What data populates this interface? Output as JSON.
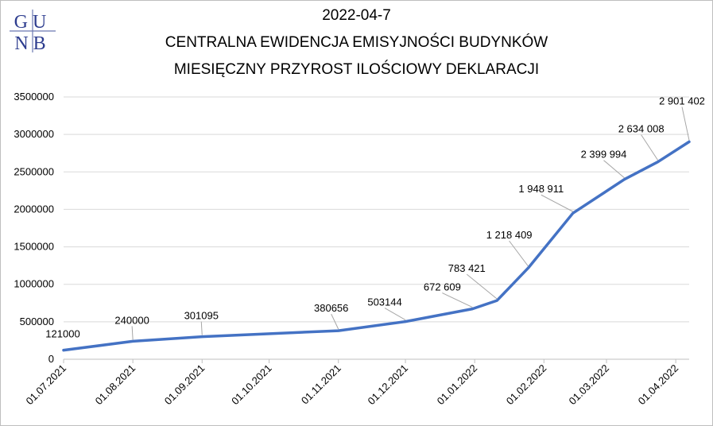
{
  "logo": {
    "text_top": "GU",
    "text_bottom": "NB"
  },
  "chart_data": {
    "type": "line",
    "title_lines": [
      "2022-04-7",
      "CENTRALNA EWIDENCJA EMISYJNOŚCI BUDYNKÓW",
      "MIESIĘCZNY PRZYROST ILOŚCIOWY DEKLARACJI"
    ],
    "xlabel": "",
    "ylabel": "",
    "ylim": [
      0,
      3500000
    ],
    "yticks": [
      0,
      500000,
      1000000,
      1500000,
      2000000,
      2500000,
      3000000,
      3500000
    ],
    "ytick_labels": [
      "0",
      "500000",
      "1000000",
      "1500000",
      "2000000",
      "2500000",
      "3000000",
      "3500000"
    ],
    "xticks": [
      "2021-07-01",
      "2021-08-01",
      "2021-09-01",
      "2021-10-01",
      "2021-11-01",
      "2021-12-01",
      "2022-01-01",
      "2022-02-01",
      "2022-03-01",
      "2022-04-01"
    ],
    "xtick_labels": [
      "01.07.2021",
      "01.08.2021",
      "01.09.2021",
      "01.10.2021",
      "01.11.2021",
      "01.12.2021",
      "01.01.2022",
      "01.02.2022",
      "01.03.2022",
      "01.04.2022"
    ],
    "xlim": [
      "2021-07-01",
      "2022-04-07"
    ],
    "grid": true,
    "legend": "none",
    "line_color": "#4472c4",
    "series": [
      {
        "points": [
          {
            "x": "2021-07-01",
            "y": 121000,
            "label": "121000"
          },
          {
            "x": "2021-08-01",
            "y": 240000,
            "label": "240000"
          },
          {
            "x": "2021-09-01",
            "y": 301095,
            "label": "301095"
          },
          {
            "x": "2021-11-01",
            "y": 380656,
            "label": "380656"
          },
          {
            "x": "2021-12-01",
            "y": 503144,
            "label": "503144"
          },
          {
            "x": "2021-12-31",
            "y": 672609,
            "label": "672 609"
          },
          {
            "x": "2022-01-11",
            "y": 783421,
            "label": "783 421"
          },
          {
            "x": "2022-01-25",
            "y": 1218409,
            "label": "1 218 409"
          },
          {
            "x": "2022-02-14",
            "y": 1948911,
            "label": "1 948 911"
          },
          {
            "x": "2022-03-09",
            "y": 2399994,
            "label": "2 399 994"
          },
          {
            "x": "2022-03-24",
            "y": 2634008,
            "label": "2 634 008"
          },
          {
            "x": "2022-04-07",
            "y": 2901402,
            "label": "2 901 402"
          }
        ]
      }
    ]
  }
}
